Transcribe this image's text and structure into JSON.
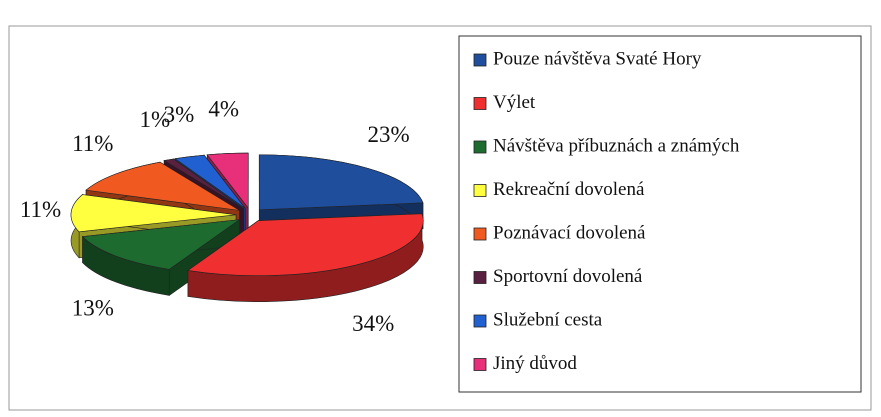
{
  "chart_data": {
    "type": "pie",
    "categories": [
      "Pouze návštěva Svaté Hory",
      "Výlet",
      "Návštěva příbuznách a známých",
      "Rekreační dovolená",
      "Poznávací dovolená",
      "Sportovní dovolená",
      "Služební cesta",
      "Jiný důvod"
    ],
    "values": [
      23,
      34,
      13,
      11,
      11,
      1,
      3,
      4
    ],
    "value_labels": [
      "23%",
      "34%",
      "13%",
      "11%",
      "11%",
      "1%",
      "3%",
      "4%"
    ],
    "colors": [
      "#1f4e9c",
      "#f03030",
      "#1e6b30",
      "#ffff40",
      "#f05a20",
      "#5a2040",
      "#2060d0",
      "#e8307a"
    ]
  }
}
